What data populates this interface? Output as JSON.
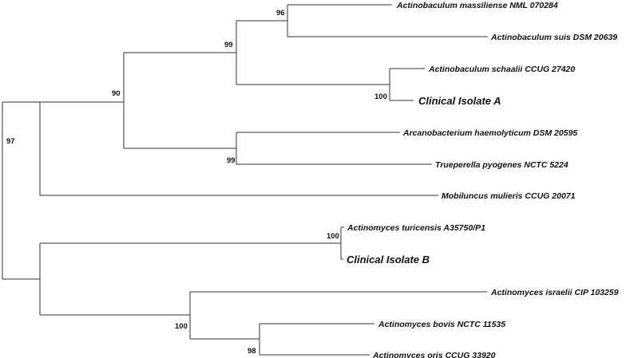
{
  "taxa": {
    "a_massiliense": "Actinobaculum massiliense NML 070284",
    "a_suis": "Actinobaculum suis DSM 20639",
    "a_schaalii": "Actinobaculum schaalii CCUG 27420",
    "isolate_a": "Clinical Isolate A",
    "arcanobacterium": "Arcanobacterium haemolyticum DSM 20595",
    "trueperella": "Trueperella pyogenes NCTC 5224",
    "mobiluncus": "Mobiluncus mulieris CCUG 20071",
    "a_turicensis": "Actinomyces turicensis A35750/P1",
    "isolate_b": "Clinical Isolate B",
    "a_israelii": "Actinomyces israelii CIP 103259",
    "a_bovis": "Actinomyces bovis NCTC 11535",
    "a_oris": "Actinomyces oris CCUG 33920"
  },
  "bootstrap": {
    "root": "97",
    "upper_clade": "90",
    "actinobaculum_clade": "99",
    "massiliense_suis": "96",
    "schaalii_isolate_a": "100",
    "arcano_trueperella": "99",
    "turicensis_isolate_b": "100",
    "actinomyces_clade": "100",
    "bovis_oris": "98"
  }
}
